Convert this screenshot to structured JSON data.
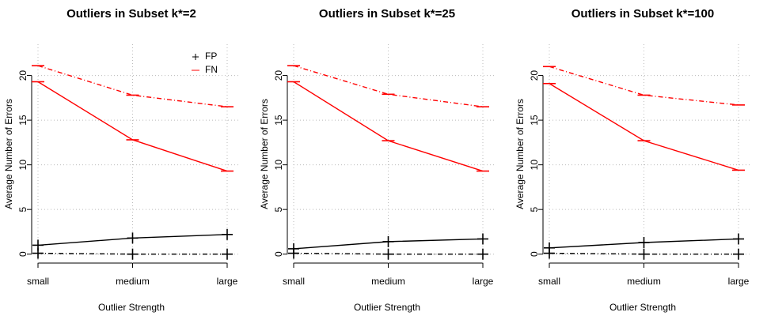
{
  "chart_data": [
    {
      "type": "line",
      "title": "Outliers in Subset k*=2",
      "xlabel": "Outlier Strength",
      "ylabel": "Average Number of Errors",
      "categories": [
        "small",
        "medium",
        "large"
      ],
      "ylim": [
        -1,
        23.5
      ],
      "yticks": [
        0,
        5,
        10,
        15,
        20
      ],
      "grid": true,
      "legend": "top-right",
      "series": [
        {
          "name": "FP",
          "color": "#000000",
          "marker": "plus",
          "dash": "solid",
          "values": [
            1.0,
            1.8,
            2.2
          ]
        },
        {
          "color": "#000000",
          "marker": "plus",
          "dash": "dashdot",
          "values": [
            0.1,
            0.0,
            0.0
          ]
        },
        {
          "name": "FN",
          "color": "#ff0000",
          "marker": "dash",
          "dash": "solid",
          "values": [
            19.3,
            12.8,
            9.3
          ]
        },
        {
          "color": "#ff0000",
          "marker": "dash",
          "dash": "dashdot",
          "values": [
            21.1,
            17.8,
            16.5
          ]
        }
      ]
    },
    {
      "type": "line",
      "title": "Outliers in Subset k*=25",
      "xlabel": "Outlier Strength",
      "ylabel": "Average Number of Errors",
      "categories": [
        "small",
        "medium",
        "large"
      ],
      "ylim": [
        -1,
        23.5
      ],
      "yticks": [
        0,
        5,
        10,
        15,
        20
      ],
      "grid": true,
      "series": [
        {
          "color": "#000000",
          "marker": "plus",
          "dash": "solid",
          "values": [
            0.6,
            1.4,
            1.7
          ]
        },
        {
          "color": "#000000",
          "marker": "plus",
          "dash": "dashdot",
          "values": [
            0.1,
            0.0,
            0.0
          ]
        },
        {
          "color": "#ff0000",
          "marker": "dash",
          "dash": "solid",
          "values": [
            19.3,
            12.7,
            9.3
          ]
        },
        {
          "color": "#ff0000",
          "marker": "dash",
          "dash": "dashdot",
          "values": [
            21.1,
            17.9,
            16.5
          ]
        }
      ]
    },
    {
      "type": "line",
      "title": "Outliers in Subset k*=100",
      "xlabel": "Outlier Strength",
      "ylabel": "Average Number of Errors",
      "categories": [
        "small",
        "medium",
        "large"
      ],
      "ylim": [
        -1,
        23.5
      ],
      "yticks": [
        0,
        5,
        10,
        15,
        20
      ],
      "grid": true,
      "series": [
        {
          "color": "#000000",
          "marker": "plus",
          "dash": "solid",
          "values": [
            0.7,
            1.3,
            1.7
          ]
        },
        {
          "color": "#000000",
          "marker": "plus",
          "dash": "dashdot",
          "values": [
            0.1,
            0.0,
            0.0
          ]
        },
        {
          "color": "#ff0000",
          "marker": "dash",
          "dash": "solid",
          "values": [
            19.1,
            12.7,
            9.4
          ]
        },
        {
          "color": "#ff0000",
          "marker": "dash",
          "dash": "dashdot",
          "values": [
            21.0,
            17.8,
            16.7
          ]
        }
      ]
    }
  ]
}
